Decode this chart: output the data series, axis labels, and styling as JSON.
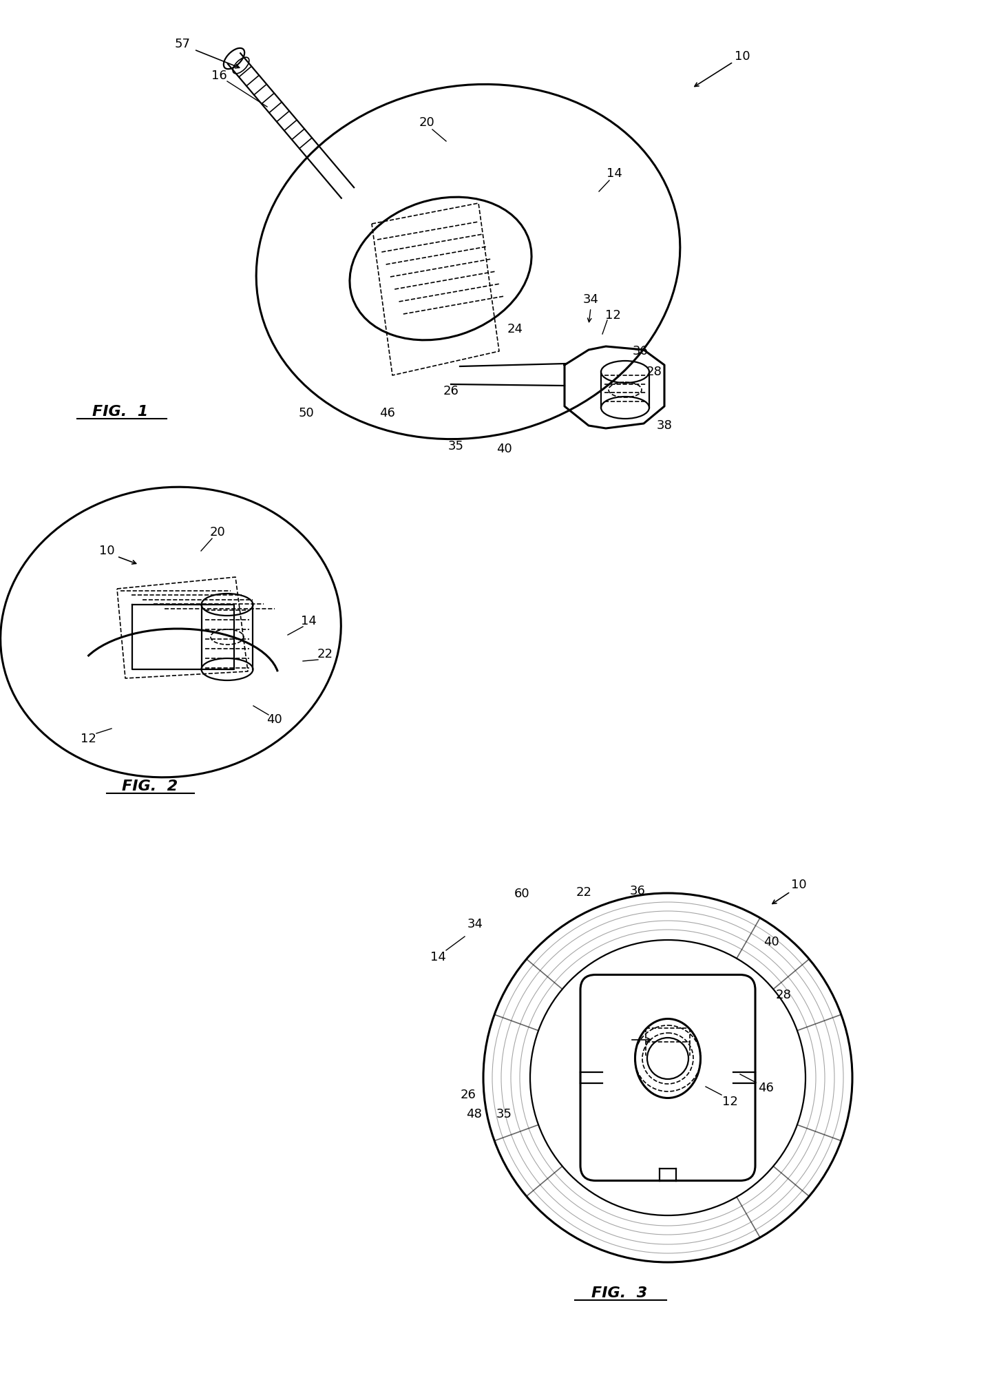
{
  "bg_color": "#ffffff",
  "line_color": "#000000",
  "lw_thick": 2.2,
  "lw_med": 1.6,
  "lw_thin": 1.2,
  "fig1_label": "FIG.  1",
  "fig2_label": "FIG.  2",
  "fig3_label": "FIG.  3"
}
